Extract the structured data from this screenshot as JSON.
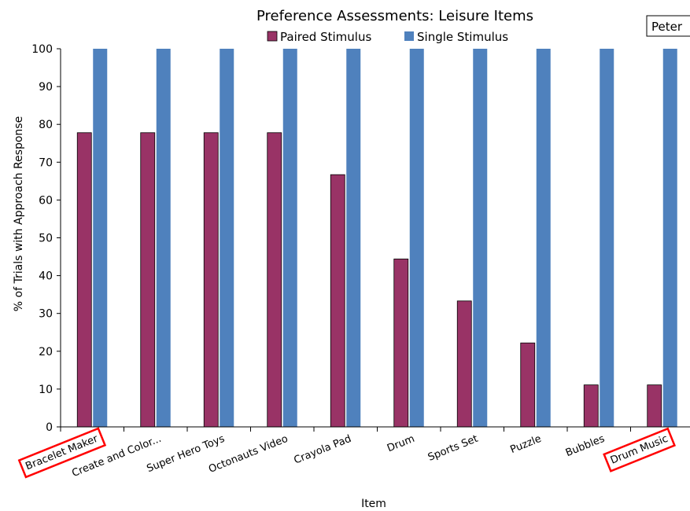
{
  "chart_data": {
    "type": "bar",
    "title": "Preference Assessments: Leisure Items",
    "xlabel": "Item",
    "ylabel": "% of Trials with Approach Response",
    "ylim": [
      0,
      100
    ],
    "yticks": [
      0,
      10,
      20,
      30,
      40,
      50,
      60,
      70,
      80,
      90,
      100
    ],
    "categories": [
      "Bracelet Maker",
      "Create and Color...",
      "Super Hero Toys",
      "Octonauts Video",
      "Crayola Pad",
      "Drum",
      "Sports Set",
      "Puzzle",
      "Bubbles",
      "Drum Music"
    ],
    "series": [
      {
        "name": "Paired Stimulus",
        "color": "#993366",
        "values": [
          77.8,
          77.8,
          77.8,
          77.8,
          66.7,
          44.4,
          33.3,
          22.2,
          11.1,
          11.1
        ]
      },
      {
        "name": "Single Stimulus",
        "color": "#4f81bd",
        "values": [
          100,
          100,
          100,
          100,
          100,
          100,
          100,
          100,
          100,
          100
        ]
      }
    ],
    "legend_position": "top",
    "highlighted_categories": [
      "Bracelet Maker",
      "Drum Music"
    ],
    "highlight_color": "#ff0000",
    "participant_label": "Peter",
    "grid": false
  }
}
